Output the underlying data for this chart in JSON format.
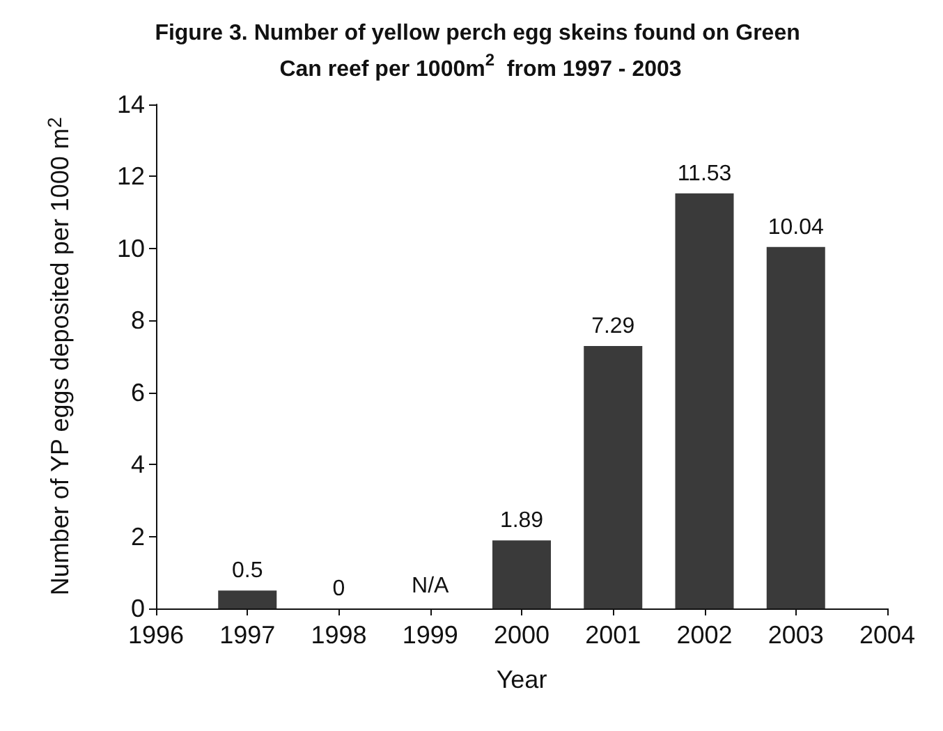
{
  "chart_data": {
    "type": "bar",
    "title": "Figure 3. Number of yellow perch egg skeins found on Green Can reef per 1000m$^{2}$  from 1997 - 2003",
    "xlabel": "Year",
    "ylabel": "Number of YP eggs deposited per 1000 m$^{2}$",
    "x": [
      1997,
      1998,
      1999,
      2000,
      2001,
      2002,
      2003
    ],
    "values": [
      0.5,
      0,
      null,
      1.89,
      7.29,
      11.53,
      10.04
    ],
    "value_labels": [
      "0.5",
      "0",
      "N/A",
      "1.89",
      "7.29",
      "11.53",
      "10.04"
    ],
    "color": "#3a3a3a",
    "xlim": [
      1996,
      2004
    ],
    "xticks": [
      1996,
      1997,
      1998,
      1999,
      2000,
      2001,
      2002,
      2003,
      2004
    ],
    "ylim": [
      0,
      14
    ],
    "yticks": [
      0,
      2,
      4,
      6,
      8,
      10,
      12,
      14
    ],
    "grid": false
  }
}
